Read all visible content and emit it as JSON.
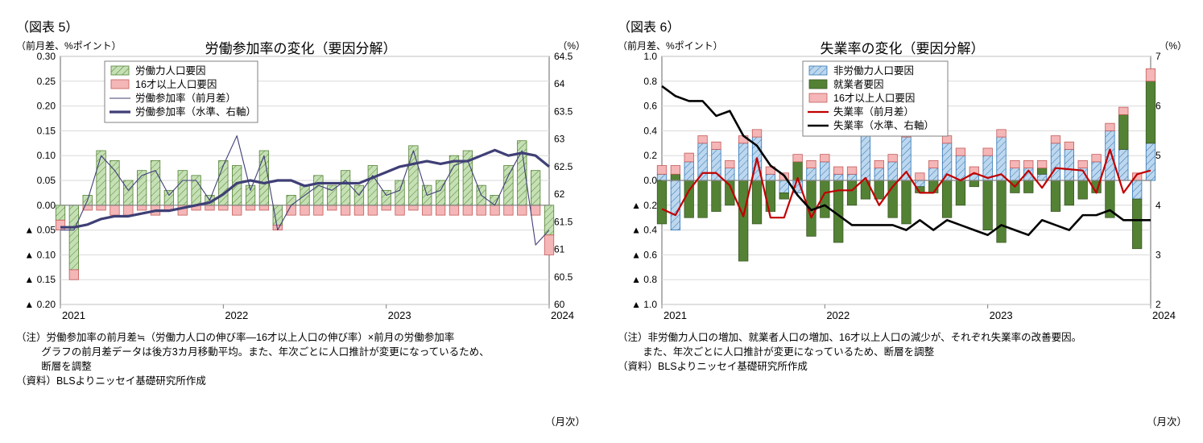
{
  "figure5": {
    "label": "（図表 5）",
    "title": "労働参加率の変化（要因分解）",
    "left_axis_label": "（前月差、%ポイント）",
    "right_axis_label": "（%）",
    "x_unit": "（月次）",
    "type": "composite-bar-line",
    "background_color": "#ffffff",
    "grid_color": "#d9d9d9",
    "axis_color": "#808080",
    "left_ylim": [
      -0.2,
      0.3
    ],
    "left_ytick_step": 0.05,
    "left_yticks_text": [
      "▲ 0.20",
      "▲ 0.15",
      "▲ 0.10",
      "▲ 0.05",
      "0.00",
      "0.05",
      "0.10",
      "0.15",
      "0.20",
      "0.25",
      "0.30"
    ],
    "left_ytick_vals": [
      -0.2,
      -0.15,
      -0.1,
      -0.05,
      0.0,
      0.05,
      0.1,
      0.15,
      0.2,
      0.25,
      0.3
    ],
    "right_ylim": [
      60.0,
      64.5
    ],
    "right_yticks": [
      60.0,
      60.5,
      61.0,
      61.5,
      62.0,
      62.5,
      63.0,
      63.5,
      64.0,
      64.5
    ],
    "x_ticks": [
      "2021",
      "2022",
      "2023",
      "2024"
    ],
    "x_tick_positions": [
      0,
      12,
      24,
      36
    ],
    "n_periods": 37,
    "legend": {
      "items": [
        {
          "key": "bar_labor",
          "label": "労働力人口要因",
          "swatch": {
            "type": "bar",
            "fill": "#c5e0b4",
            "stroke": "#548235",
            "hatch": true
          }
        },
        {
          "key": "bar_pop",
          "label": "16才以上人口要因",
          "swatch": {
            "type": "bar",
            "fill": "#f4b6b6",
            "stroke": "#c55a5a",
            "hatch": false
          }
        },
        {
          "key": "line_mom",
          "label": "労働参加率（前月差）",
          "swatch": {
            "type": "line",
            "stroke": "#3f3f76",
            "width": 1.1
          }
        },
        {
          "key": "line_level",
          "label": "労働参加率（水準、右軸）",
          "swatch": {
            "type": "line",
            "stroke": "#3f3f76",
            "width": 3.2
          }
        }
      ]
    },
    "series": {
      "bar_labor": {
        "color": "#c5e0b4",
        "stroke": "#548235",
        "hatch": true,
        "values": [
          -0.03,
          -0.13,
          0.02,
          0.11,
          0.09,
          0.05,
          0.07,
          0.09,
          0.03,
          0.07,
          0.06,
          0.02,
          0.09,
          0.08,
          0.04,
          0.11,
          -0.04,
          0.02,
          0.04,
          0.06,
          0.04,
          0.07,
          0.04,
          0.08,
          0.03,
          0.05,
          0.12,
          0.04,
          0.05,
          0.1,
          0.11,
          0.04,
          0.02,
          0.08,
          0.13,
          0.07,
          -0.06
        ]
      },
      "bar_pop": {
        "color": "#f4b6b6",
        "stroke": "#c55a5a",
        "hatch": false,
        "values": [
          -0.02,
          -0.02,
          -0.01,
          -0.01,
          -0.02,
          -0.02,
          -0.01,
          -0.02,
          -0.01,
          -0.02,
          -0.01,
          -0.01,
          -0.01,
          -0.02,
          -0.01,
          -0.01,
          -0.01,
          -0.02,
          -0.02,
          -0.02,
          -0.01,
          -0.02,
          -0.02,
          -0.02,
          -0.01,
          -0.02,
          -0.01,
          -0.02,
          -0.02,
          -0.02,
          -0.02,
          -0.02,
          -0.02,
          -0.02,
          -0.02,
          -0.02,
          -0.04
        ]
      },
      "line_mom": {
        "color": "#3f3f76",
        "width": 1.1,
        "values": [
          -0.05,
          -0.05,
          0.01,
          0.1,
          0.07,
          0.03,
          0.06,
          0.07,
          0.02,
          0.05,
          0.05,
          0.01,
          0.08,
          0.14,
          0.03,
          0.1,
          -0.05,
          0.0,
          0.02,
          0.04,
          0.03,
          0.05,
          0.02,
          0.06,
          0.02,
          0.03,
          0.11,
          0.02,
          0.03,
          0.08,
          0.09,
          0.02,
          0.0,
          0.06,
          0.11,
          -0.08,
          -0.05
        ]
      },
      "line_level": {
        "color": "#3f3f76",
        "width": 3.2,
        "values": [
          61.4,
          61.4,
          61.45,
          61.55,
          61.6,
          61.6,
          61.65,
          61.7,
          61.7,
          61.75,
          61.8,
          61.85,
          62.0,
          62.2,
          62.25,
          62.2,
          62.25,
          62.25,
          62.15,
          62.2,
          62.2,
          62.2,
          62.2,
          62.3,
          62.4,
          62.5,
          62.55,
          62.6,
          62.55,
          62.6,
          62.6,
          62.7,
          62.8,
          62.7,
          62.75,
          62.7,
          62.5
        ]
      }
    },
    "notes": [
      "（注）労働参加率の前月差≒（労働力人口の伸び率―16才以上人口の伸び率）×前月の労働参加率",
      "グラフの前月差データは後方3カ月移動平均。また、年次ごとに人口推計が変更になっているため、",
      "断層を調整",
      "（資料）BLSよりニッセイ基礎研究所作成"
    ]
  },
  "figure6": {
    "label": "（図表 6）",
    "title": "失業率の変化（要因分解）",
    "left_axis_label": "（前月差、%ポイント）",
    "right_axis_label": "（%）",
    "x_unit": "（月次）",
    "type": "composite-bar-line",
    "background_color": "#ffffff",
    "grid_color": "#d9d9d9",
    "axis_color": "#808080",
    "left_ylim": [
      -1.0,
      1.0
    ],
    "left_ytick_step": 0.2,
    "left_yticks_text": [
      "▲ 1.0",
      "▲ 0.8",
      "▲ 0.6",
      "▲ 0.4",
      "▲ 0.2",
      "0.0",
      "0.2",
      "0.4",
      "0.6",
      "0.8",
      "1.0"
    ],
    "left_ytick_vals": [
      -1.0,
      -0.8,
      -0.6,
      -0.4,
      -0.2,
      0.0,
      0.2,
      0.4,
      0.6,
      0.8,
      1.0
    ],
    "right_ylim": [
      2,
      7
    ],
    "right_yticks": [
      2,
      3,
      4,
      5,
      6,
      7
    ],
    "x_ticks": [
      "2021",
      "2022",
      "2023",
      "2024"
    ],
    "x_tick_positions": [
      0,
      12,
      24,
      36
    ],
    "n_periods": 37,
    "legend": {
      "items": [
        {
          "key": "bar_nilf",
          "label": "非労働力人口要因",
          "swatch": {
            "type": "bar",
            "fill": "#bdd7ee",
            "stroke": "#2e75b6",
            "hatch": true
          }
        },
        {
          "key": "bar_emp",
          "label": "就業者要因",
          "swatch": {
            "type": "bar",
            "fill": "#548235",
            "stroke": "#385723",
            "hatch": false
          }
        },
        {
          "key": "bar_pop",
          "label": "16才以上人口要因",
          "swatch": {
            "type": "bar",
            "fill": "#f4b6b6",
            "stroke": "#c55a5a",
            "hatch": false
          }
        },
        {
          "key": "line_mom",
          "label": "失業率（前月差）",
          "swatch": {
            "type": "line",
            "stroke": "#c00000",
            "width": 2.2
          }
        },
        {
          "key": "line_level",
          "label": "失業率（水準、右軸）",
          "swatch": {
            "type": "line",
            "stroke": "#000000",
            "width": 2.6
          }
        }
      ]
    },
    "series": {
      "bar_nilf": {
        "color": "#bdd7ee",
        "stroke": "#2e75b6",
        "hatch": true,
        "values": [
          0.05,
          -0.4,
          0.15,
          0.3,
          0.25,
          0.1,
          0.3,
          0.35,
          0.05,
          -0.1,
          -0.1,
          0.1,
          0.15,
          0.05,
          0.05,
          0.4,
          0.1,
          0.15,
          0.35,
          -0.05,
          0.1,
          0.3,
          0.2,
          0.05,
          0.2,
          0.35,
          0.1,
          0.1,
          0.05,
          0.3,
          0.25,
          0.1,
          0.15,
          0.4,
          0.25,
          -0.15,
          0.3
        ]
      },
      "bar_emp": {
        "color": "#548235",
        "stroke": "#385723",
        "hatch": false,
        "values": [
          -0.35,
          0.05,
          -0.3,
          -0.3,
          -0.25,
          -0.2,
          -0.65,
          -0.35,
          -0.25,
          -0.05,
          0.15,
          -0.45,
          -0.3,
          -0.5,
          -0.2,
          -0.15,
          -0.15,
          -0.3,
          -0.35,
          -0.05,
          -0.1,
          -0.3,
          -0.2,
          -0.05,
          -0.4,
          -0.5,
          -0.1,
          -0.1,
          0.05,
          -0.25,
          -0.2,
          -0.15,
          -0.1,
          -0.3,
          0.28,
          -0.4,
          0.5
        ]
      },
      "bar_pop": {
        "color": "#f4b6b6",
        "stroke": "#c55a5a",
        "hatch": false,
        "values": [
          0.07,
          0.07,
          0.07,
          0.06,
          0.06,
          0.06,
          0.06,
          0.06,
          0.06,
          0.06,
          0.06,
          0.06,
          0.06,
          0.06,
          0.06,
          0.06,
          0.06,
          0.06,
          0.06,
          0.06,
          0.06,
          0.06,
          0.06,
          0.06,
          0.06,
          0.06,
          0.06,
          0.06,
          0.06,
          0.06,
          0.06,
          0.06,
          0.06,
          0.06,
          0.06,
          0.06,
          0.1
        ]
      },
      "line_mom": {
        "color": "#c00000",
        "width": 2.2,
        "values": [
          -0.23,
          -0.28,
          -0.08,
          0.06,
          0.06,
          -0.04,
          -0.29,
          0.18,
          -0.3,
          -0.3,
          0.02,
          -0.3,
          -0.1,
          -0.08,
          -0.08,
          0.02,
          -0.2,
          -0.05,
          0.07,
          -0.1,
          -0.1,
          0.05,
          0.0,
          0.06,
          0.02,
          0.05,
          -0.05,
          0.08,
          -0.06,
          0.1,
          0.09,
          0.08,
          -0.1,
          0.25,
          -0.1,
          0.05,
          0.08
        ]
      },
      "line_level": {
        "color": "#000000",
        "width": 2.6,
        "values": [
          6.4,
          6.2,
          6.1,
          6.1,
          5.8,
          5.9,
          5.4,
          5.2,
          4.8,
          4.6,
          4.2,
          3.9,
          4.0,
          3.8,
          3.6,
          3.6,
          3.6,
          3.6,
          3.5,
          3.7,
          3.5,
          3.7,
          3.6,
          3.5,
          3.4,
          3.6,
          3.5,
          3.4,
          3.7,
          3.6,
          3.5,
          3.8,
          3.8,
          3.9,
          3.7,
          3.7,
          3.7
        ]
      }
    },
    "notes": [
      "（注）非労働力人口の増加、就業者人口の増加、16才以上人口の減少が、それぞれ失業率の改善要因。",
      "また、年次ごとに人口推計が変更になっているため、断層を調整",
      "（資料）BLSよりニッセイ基礎研究所作成"
    ]
  }
}
